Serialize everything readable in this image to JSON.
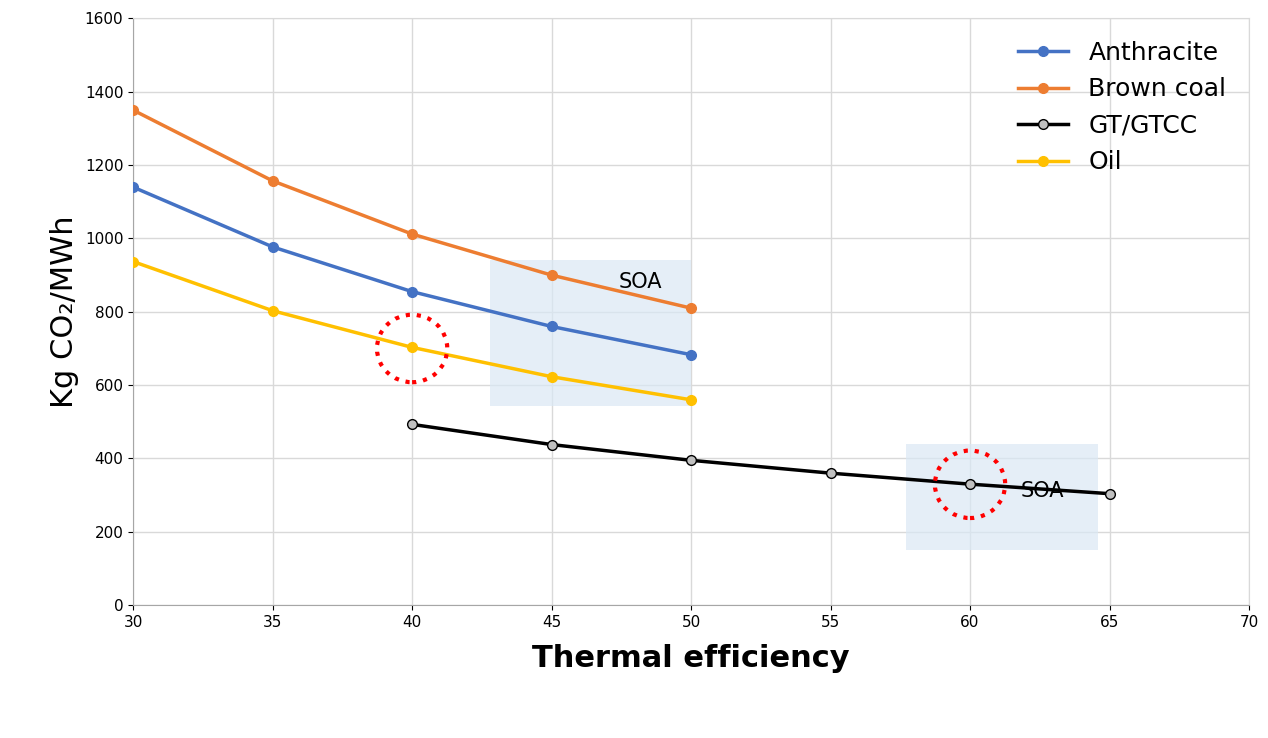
{
  "chart_data": {
    "type": "line",
    "x_label": "Thermal efficiency",
    "y_label": "Kg CO₂/MWh",
    "x": [
      30,
      35,
      40,
      45,
      50,
      55,
      60,
      65
    ],
    "series": [
      {
        "name": "Anthracite",
        "color": "#4472c4",
        "marker": "o",
        "values": [
          1140,
          977,
          855,
          760,
          683,
          null,
          null,
          null
        ]
      },
      {
        "name": "Brown coal",
        "color": "#ed7d31",
        "marker": "o",
        "values": [
          1350,
          1157,
          1012,
          900,
          810,
          null,
          null,
          null
        ]
      },
      {
        "name": "GT/GTCC",
        "color": "#000000",
        "marker": "o",
        "values": [
          null,
          null,
          493,
          438,
          395,
          360,
          330,
          304
        ]
      },
      {
        "name": "Oil",
        "color": "#ffc000",
        "marker": "o",
        "values": [
          937,
          803,
          703,
          623,
          560,
          null,
          null,
          null
        ]
      }
    ],
    "annotations": [
      "SOA",
      "SOA"
    ],
    "xlim": [
      30,
      70
    ],
    "xticks": [
      30,
      35,
      40,
      45,
      50,
      55,
      60,
      65,
      70
    ],
    "ylim": [
      0,
      1600
    ],
    "yticks": [
      0,
      200,
      400,
      600,
      800,
      1000,
      1200,
      1400,
      1600
    ],
    "grid": true,
    "legend": "upper right"
  }
}
